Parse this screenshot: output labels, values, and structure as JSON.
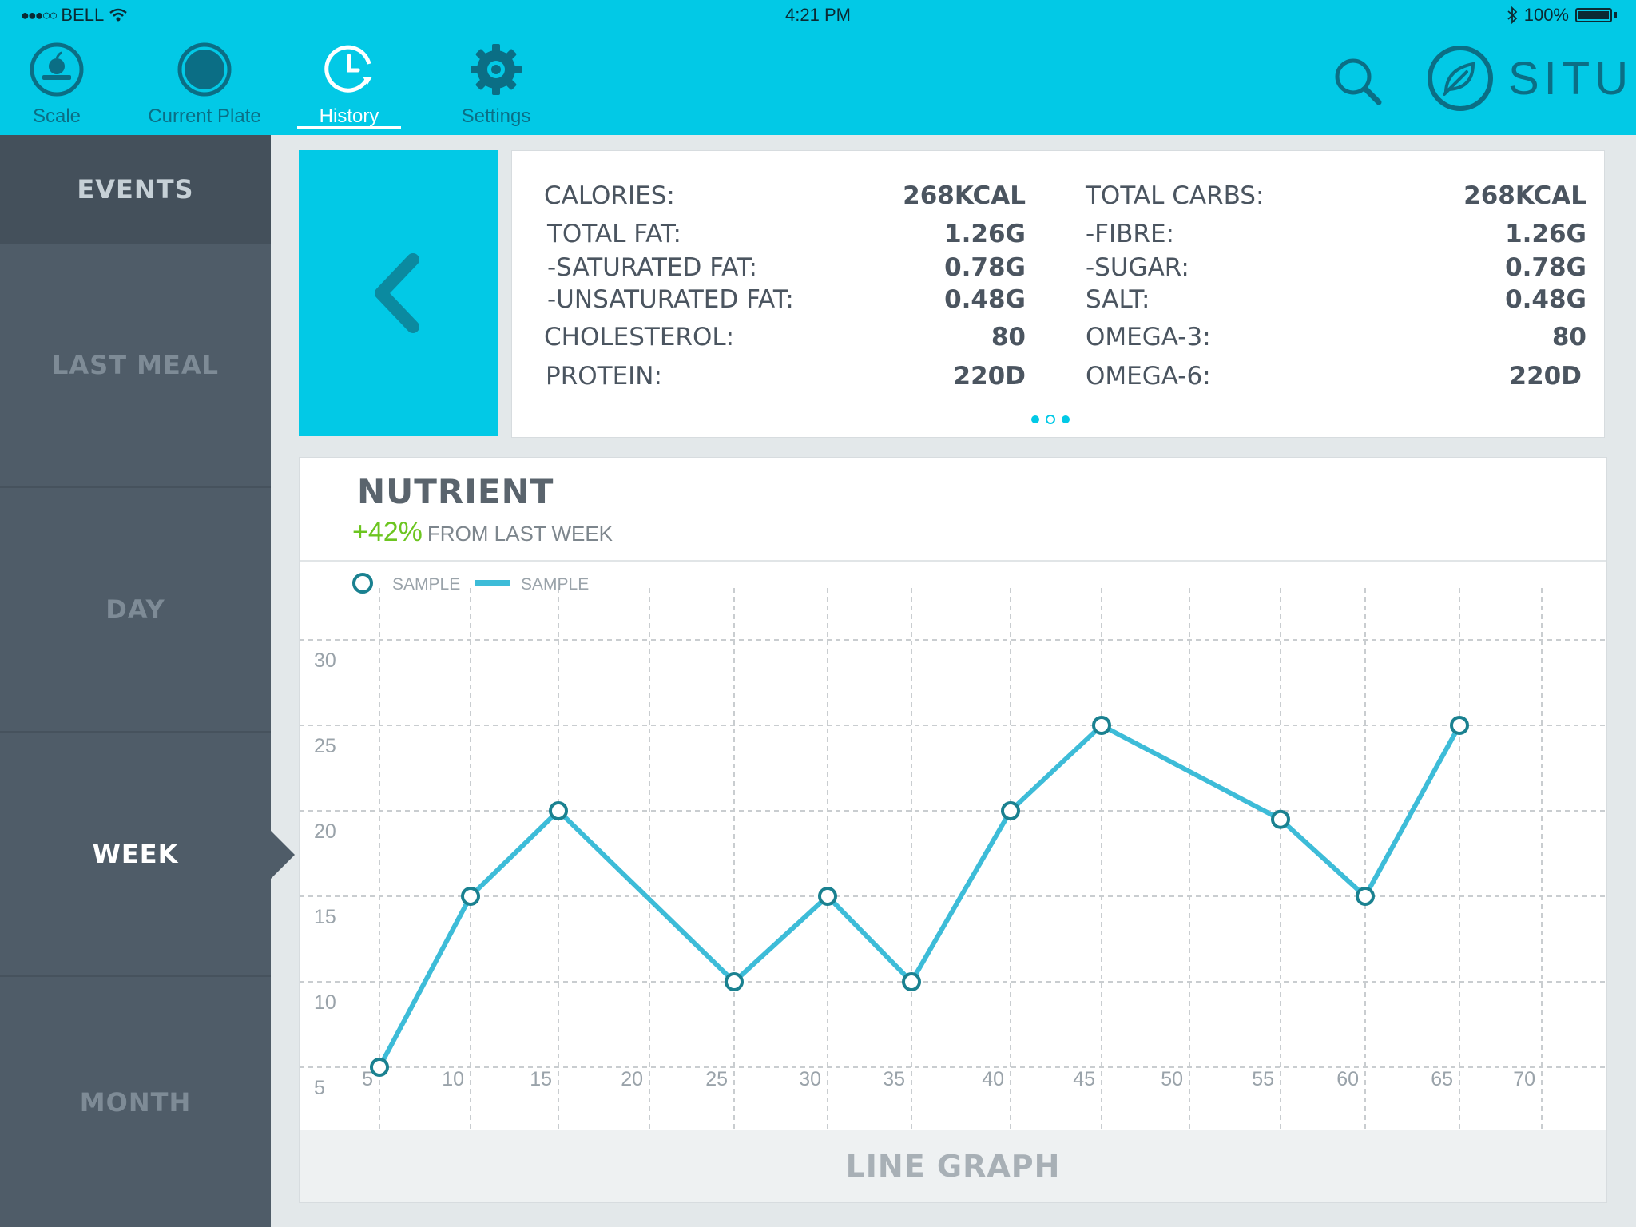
{
  "status_bar": {
    "signal": "●●●○○",
    "carrier": "BELL",
    "time": "4:21 PM",
    "battery": "100%"
  },
  "nav": {
    "items": [
      {
        "label": "Scale",
        "icon": "apple-scale-icon",
        "active": false
      },
      {
        "label": "Current Plate",
        "icon": "plate-icon",
        "active": false
      },
      {
        "label": "History",
        "icon": "clock-history-icon",
        "active": true
      },
      {
        "label": "Settings",
        "icon": "gear-icon",
        "active": false
      }
    ],
    "search_icon": "search-icon",
    "logo_text": "SITU",
    "logo_icon": "leaf-icon"
  },
  "sidebar": {
    "items": [
      {
        "label": "EVENTS",
        "active": false
      },
      {
        "label": "LAST MEAL",
        "active": false
      },
      {
        "label": "DAY",
        "active": false
      },
      {
        "label": "WEEK",
        "active": true
      },
      {
        "label": "MONTH",
        "active": false
      }
    ]
  },
  "summary": {
    "back_icon": "chevron-left-icon",
    "left": [
      {
        "label": "CALORIES:",
        "value": "268KCAL"
      },
      {
        "label": "TOTAL FAT:",
        "value": "1.26G"
      },
      {
        "label": "-SATURATED FAT:",
        "value": "0.78G"
      },
      {
        "label": "-UNSATURATED FAT:",
        "value": "0.48G"
      },
      {
        "label": "CHOLESTEROL:",
        "value": "80"
      },
      {
        "label": "PROTEIN:",
        "value": "220D"
      }
    ],
    "right": [
      {
        "label": "TOTAL CARBS:",
        "value": "268KCAL"
      },
      {
        "label": "-FIBRE:",
        "value": "1.26G"
      },
      {
        "label": "-SUGAR:",
        "value": "0.78G"
      },
      {
        "label": "SALT:",
        "value": "0.48G"
      },
      {
        "label": "OMEGA-3:",
        "value": "80"
      },
      {
        "label": "OMEGA-6:",
        "value": "220D"
      }
    ],
    "pager": {
      "pages": 3,
      "current": 2
    }
  },
  "chart_card": {
    "title": "NUTRIENT",
    "change": "+42%",
    "change_text": "FROM LAST WEEK",
    "footer": "LINE GRAPH"
  },
  "colors": {
    "accent": "#02c9e6",
    "line": "#3dbcd8",
    "marker": "#1a8190",
    "positive": "#6cc520",
    "sidebar": "#4f5c68"
  },
  "chart_data": {
    "type": "line",
    "legend": [
      {
        "label": "SAMPLE",
        "marker": "circle"
      },
      {
        "label": "SAMPLE",
        "marker": "line"
      }
    ],
    "x_ticks": [
      5,
      10,
      15,
      20,
      25,
      30,
      35,
      40,
      45,
      50,
      55,
      60,
      65,
      70
    ],
    "y_ticks": [
      5,
      10,
      15,
      20,
      25,
      30
    ],
    "series": [
      {
        "x": [
          5,
          10,
          15,
          25,
          30,
          35,
          40,
          45,
          55,
          60,
          65
        ],
        "y": [
          5,
          15,
          20,
          10,
          15,
          10,
          20,
          25,
          19.5,
          15,
          25
        ]
      }
    ],
    "grid": true,
    "legend_position": "top-left"
  }
}
